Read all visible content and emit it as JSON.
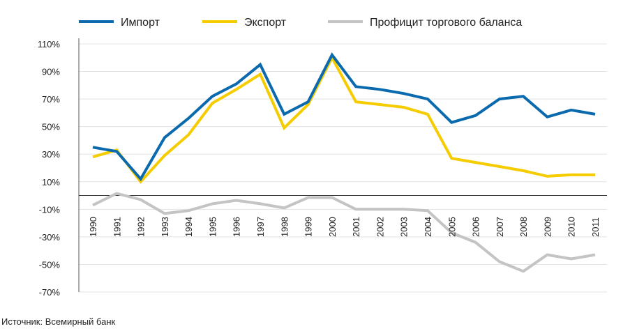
{
  "chart_data": {
    "type": "line",
    "title": "",
    "xlabel": "",
    "ylabel": "",
    "ylim": [
      -70,
      110
    ],
    "yticks": [
      110,
      90,
      70,
      50,
      30,
      10,
      -10,
      -30,
      -50,
      -70
    ],
    "ytick_labels": [
      "110%",
      "90%",
      "70%",
      "50%",
      "30%",
      "10%",
      "-10%",
      "-30%",
      "-50%",
      "-70%"
    ],
    "grid": true,
    "legend_position": "top",
    "x": [
      "1990",
      "1991",
      "1992",
      "1993",
      "1994",
      "1995",
      "1996",
      "1997",
      "1998",
      "1999",
      "2000",
      "2001",
      "2002",
      "2003",
      "2004",
      "2005",
      "2006",
      "2007",
      "2008",
      "2009",
      "2010",
      "2011"
    ],
    "series": [
      {
        "name": "Импорт",
        "color": "#0a6aad",
        "values": [
          35,
          32,
          12,
          42,
          56,
          72,
          81,
          95,
          59,
          68,
          102,
          79,
          77,
          74,
          70,
          53,
          58,
          70,
          72,
          57,
          62,
          59
        ]
      },
      {
        "name": "Экспорт",
        "color": "#f5cc00",
        "values": [
          28,
          33,
          10,
          29,
          44,
          67,
          77,
          88,
          49,
          66,
          100,
          68,
          66,
          64,
          59,
          27,
          24,
          21,
          18,
          14,
          15,
          15
        ]
      },
      {
        "name": "Профицит торгового баланса",
        "color": "#c4c4c4",
        "values": [
          -7,
          1.5,
          -3,
          -13,
          -11,
          -6,
          -3.5,
          -6,
          -9,
          -1.5,
          -1.5,
          -10,
          -10,
          -10,
          -11,
          -27,
          -34,
          -48,
          -55,
          -43,
          -46,
          -43
        ]
      }
    ]
  },
  "source": "Источник: Всемирный банк"
}
